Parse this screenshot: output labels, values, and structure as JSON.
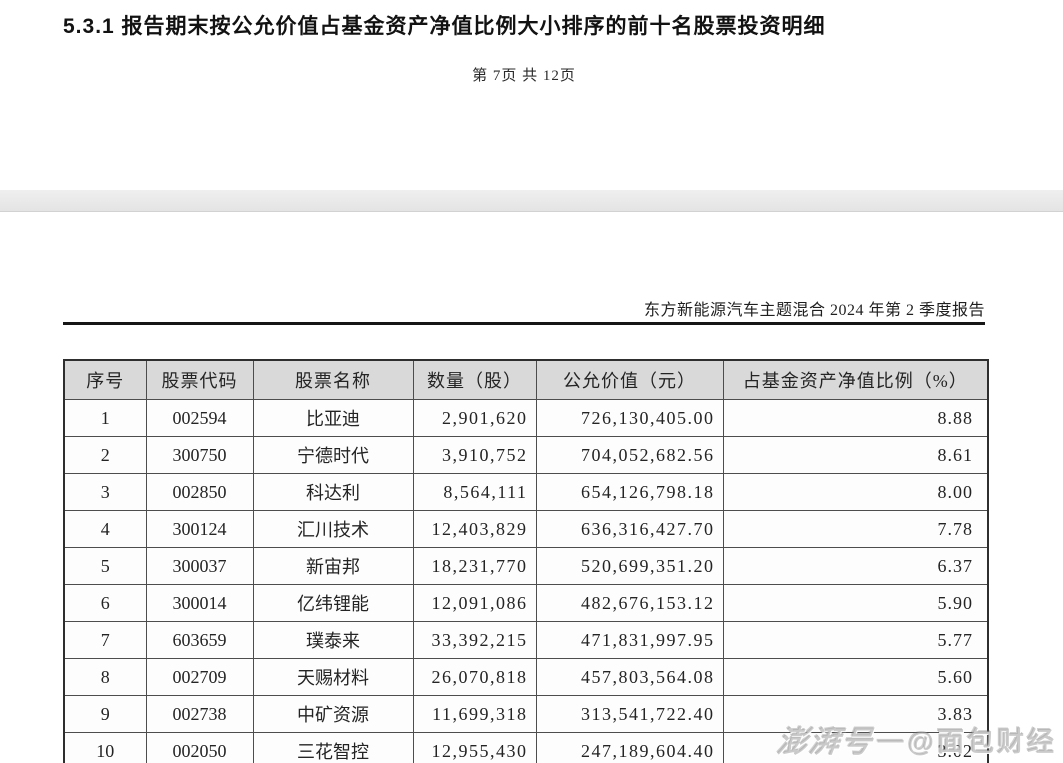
{
  "header": {
    "section_title": "5.3.1 报告期末按公允价值占基金资产净值比例大小排序的前十名股票投资明细",
    "page_indicator": "第 7页 共 12页",
    "report_title": "东方新能源汽车主题混合 2024 年第 2 季度报告"
  },
  "table": {
    "headers": [
      "序号",
      "股票代码",
      "股票名称",
      "数量（股）",
      "公允价值（元）",
      "占基金资产净值比例（%）"
    ],
    "rows": [
      [
        "1",
        "002594",
        "比亚迪",
        "2,901,620",
        "726,130,405.00",
        "8.88"
      ],
      [
        "2",
        "300750",
        "宁德时代",
        "3,910,752",
        "704,052,682.56",
        "8.61"
      ],
      [
        "3",
        "002850",
        "科达利",
        "8,564,111",
        "654,126,798.18",
        "8.00"
      ],
      [
        "4",
        "300124",
        "汇川技术",
        "12,403,829",
        "636,316,427.70",
        "7.78"
      ],
      [
        "5",
        "300037",
        "新宙邦",
        "18,231,770",
        "520,699,351.20",
        "6.37"
      ],
      [
        "6",
        "300014",
        "亿纬锂能",
        "12,091,086",
        "482,676,153.12",
        "5.90"
      ],
      [
        "7",
        "603659",
        "璞泰来",
        "33,392,215",
        "471,831,997.95",
        "5.77"
      ],
      [
        "8",
        "002709",
        "天赐材料",
        "26,070,818",
        "457,803,564.08",
        "5.60"
      ],
      [
        "9",
        "002738",
        "中矿资源",
        "11,699,318",
        "313,541,722.40",
        "3.83"
      ],
      [
        "10",
        "002050",
        "三花智控",
        "12,955,430",
        "247,189,604.40",
        "3.02"
      ]
    ]
  },
  "watermark": {
    "brand": "澎湃号",
    "dash": "—",
    "account": "@面包财经"
  },
  "colors": {
    "header_bg": "#d9d9d9",
    "table_border": "#4d4d4d",
    "rule": "#161616",
    "band": "#e9e9e9",
    "watermark_gray": "#a8a8a8"
  }
}
